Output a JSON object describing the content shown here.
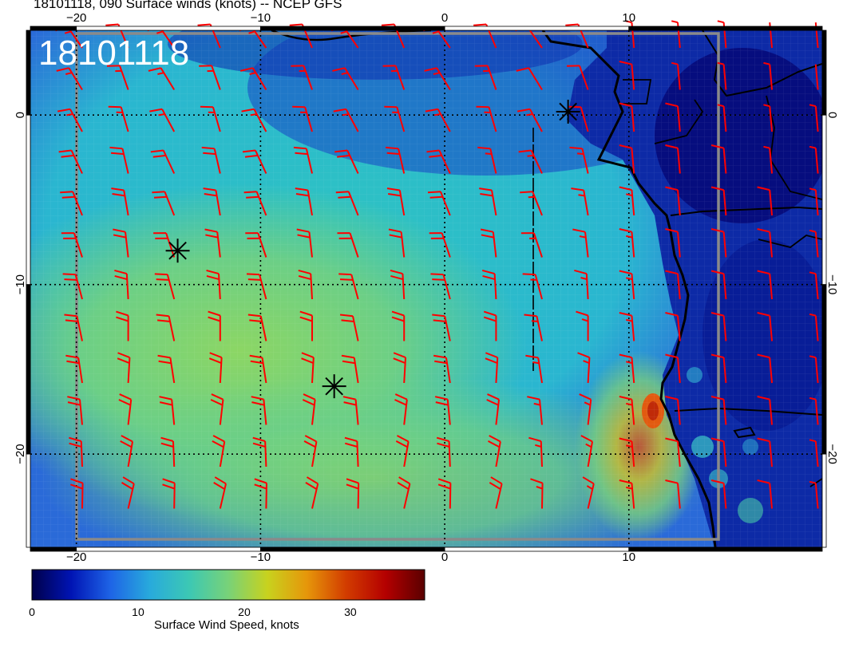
{
  "header": {
    "title": "18101118, 090 Surface winds (knots) -- NCEP GFS"
  },
  "chart_data": {
    "type": "heatmap",
    "title": "18101118, 090 Surface winds (knots) -- NCEP GFS",
    "stamp": "18101118",
    "xlim": [
      -22.5,
      20.5
    ],
    "ylim": [
      -25.5,
      5
    ],
    "xticks": [
      {
        "value": -20,
        "top": "−20",
        "bottom": "−20"
      },
      {
        "value": -10,
        "top": "−10",
        "bottom": "−10"
      },
      {
        "value": 0,
        "top": "0",
        "bottom": "0"
      },
      {
        "value": 10,
        "top": "10",
        "bottom": "10"
      }
    ],
    "yticks": [
      {
        "value": 0,
        "label": "0"
      },
      {
        "value": -10,
        "label": "−10"
      },
      {
        "value": -20,
        "label": "−20"
      }
    ],
    "grid": true,
    "field_description": "Surface wind speed (knots), strongest (~20-24 kt) over the central South Atlantic near 15°S 10°W, weak (<8 kt) over land and the Gulf of Guinea, local max ~30 kt near 17°S 11.5°E",
    "wind_barbs": {
      "color": "#ff0000",
      "typical_direction": "from SE",
      "speed_range_knots": [
        5,
        25
      ]
    },
    "markers": [
      {
        "lon": -14.5,
        "lat": -8,
        "symbol": "asterisk"
      },
      {
        "lon": -6,
        "lat": -16,
        "symbol": "asterisk"
      },
      {
        "lon": 6.7,
        "lat": 0.2,
        "symbol": "asterisk"
      }
    ],
    "colorbar": {
      "label": "Surface Wind Speed, knots",
      "ticks": [
        0,
        10,
        20,
        30
      ],
      "tick_labels": [
        "0",
        "10",
        "20",
        "30"
      ],
      "range": [
        0,
        37
      ],
      "colors": [
        "#00004a",
        "#0014b4",
        "#1e64e6",
        "#28aadc",
        "#3cc8b4",
        "#78d278",
        "#c8d21e",
        "#e6960a",
        "#d23c00",
        "#b40000",
        "#5a0000"
      ]
    }
  }
}
